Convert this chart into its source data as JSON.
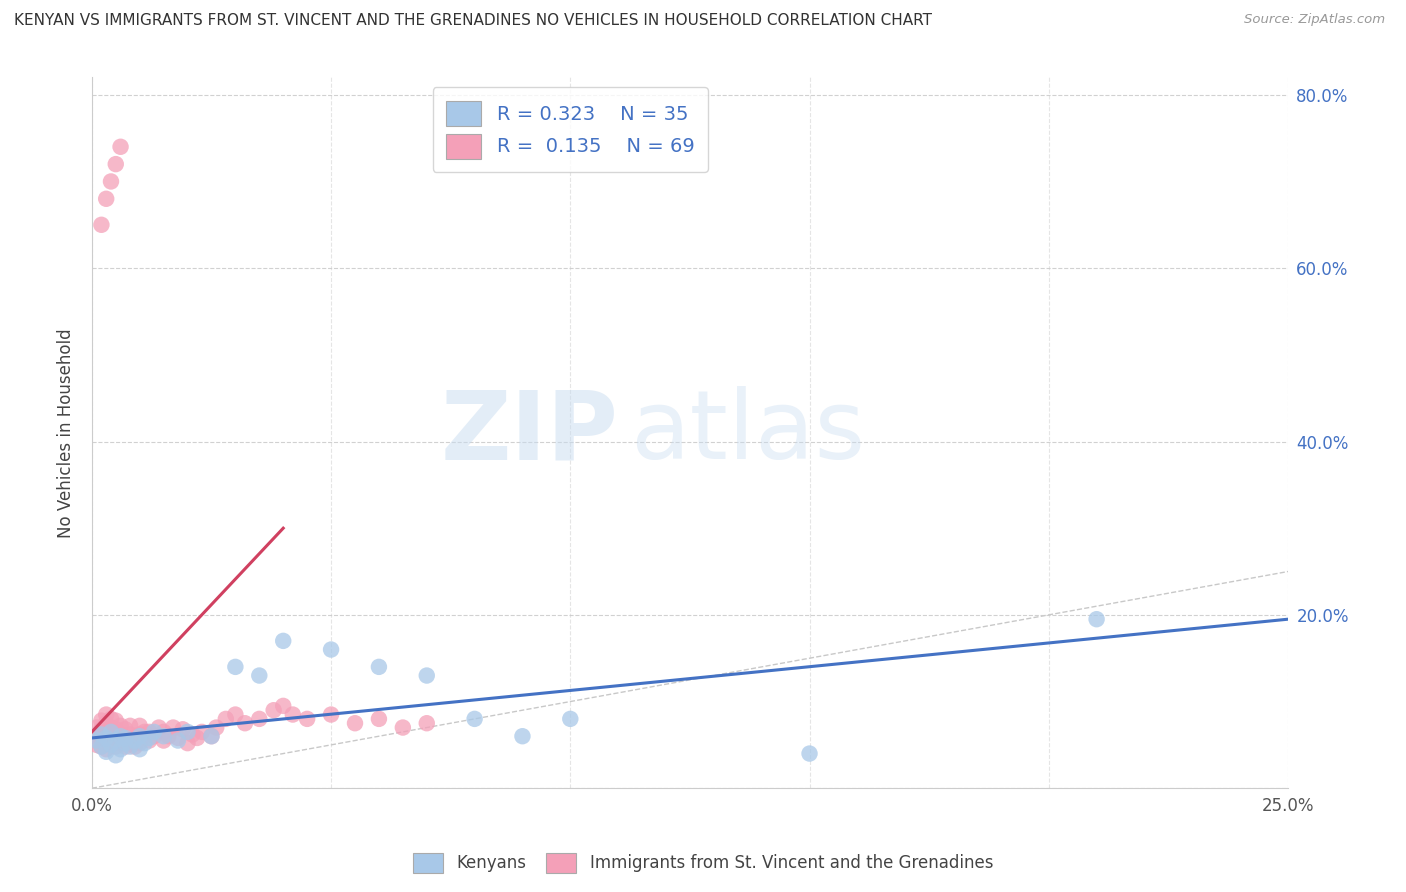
{
  "title": "KENYAN VS IMMIGRANTS FROM ST. VINCENT AND THE GRENADINES NO VEHICLES IN HOUSEHOLD CORRELATION CHART",
  "source": "Source: ZipAtlas.com",
  "ylabel": "No Vehicles in Household",
  "xlim": [
    0.0,
    0.25
  ],
  "ylim": [
    0.0,
    0.82
  ],
  "xticks": [
    0.0,
    0.05,
    0.1,
    0.15,
    0.2,
    0.25
  ],
  "yticks": [
    0.0,
    0.2,
    0.4,
    0.6,
    0.8
  ],
  "ytick_labels": [
    "",
    "20.0%",
    "40.0%",
    "60.0%",
    "80.0%"
  ],
  "xtick_labels": [
    "0.0%",
    "",
    "",
    "",
    "",
    "25.0%"
  ],
  "kenyan_R": 0.323,
  "kenyan_N": 35,
  "svg_R": 0.135,
  "svg_N": 69,
  "kenyan_color": "#a8c8e8",
  "svg_color": "#f4a0b8",
  "kenyan_line_color": "#4472c4",
  "svg_line_color": "#d04060",
  "background_color": "#ffffff",
  "grid_color": "#cccccc",
  "watermark_zip": "ZIP",
  "watermark_atlas": "atlas",
  "legend_label_kenyan": "Kenyans",
  "legend_label_svg": "Immigrants from St. Vincent and the Grenadines",
  "kenyan_x": [
    0.001,
    0.002,
    0.002,
    0.003,
    0.003,
    0.004,
    0.004,
    0.005,
    0.005,
    0.006,
    0.006,
    0.007,
    0.007,
    0.008,
    0.009,
    0.01,
    0.01,
    0.011,
    0.012,
    0.013,
    0.015,
    0.018,
    0.02,
    0.025,
    0.03,
    0.035,
    0.04,
    0.05,
    0.06,
    0.07,
    0.08,
    0.09,
    0.1,
    0.15,
    0.21
  ],
  "kenyan_y": [
    0.055,
    0.048,
    0.062,
    0.042,
    0.058,
    0.05,
    0.065,
    0.038,
    0.055,
    0.045,
    0.06,
    0.052,
    0.058,
    0.048,
    0.055,
    0.045,
    0.06,
    0.052,
    0.058,
    0.065,
    0.06,
    0.055,
    0.065,
    0.06,
    0.14,
    0.13,
    0.17,
    0.16,
    0.14,
    0.13,
    0.08,
    0.06,
    0.08,
    0.04,
    0.195
  ],
  "svg_x": [
    0.001,
    0.001,
    0.001,
    0.002,
    0.002,
    0.002,
    0.002,
    0.003,
    0.003,
    0.003,
    0.003,
    0.003,
    0.004,
    0.004,
    0.004,
    0.004,
    0.005,
    0.005,
    0.005,
    0.005,
    0.006,
    0.006,
    0.006,
    0.007,
    0.007,
    0.007,
    0.008,
    0.008,
    0.008,
    0.009,
    0.009,
    0.01,
    0.01,
    0.01,
    0.011,
    0.012,
    0.012,
    0.013,
    0.014,
    0.015,
    0.015,
    0.016,
    0.017,
    0.018,
    0.019,
    0.02,
    0.021,
    0.022,
    0.023,
    0.025,
    0.026,
    0.028,
    0.03,
    0.032,
    0.035,
    0.038,
    0.04,
    0.042,
    0.045,
    0.05,
    0.055,
    0.06,
    0.065,
    0.07,
    0.002,
    0.003,
    0.004,
    0.005,
    0.006
  ],
  "svg_y": [
    0.05,
    0.06,
    0.07,
    0.048,
    0.058,
    0.068,
    0.078,
    0.045,
    0.055,
    0.065,
    0.075,
    0.085,
    0.05,
    0.06,
    0.07,
    0.08,
    0.048,
    0.058,
    0.068,
    0.078,
    0.052,
    0.062,
    0.072,
    0.048,
    0.058,
    0.068,
    0.052,
    0.062,
    0.072,
    0.048,
    0.058,
    0.052,
    0.062,
    0.072,
    0.065,
    0.055,
    0.065,
    0.06,
    0.07,
    0.055,
    0.065,
    0.06,
    0.07,
    0.058,
    0.068,
    0.052,
    0.062,
    0.058,
    0.065,
    0.06,
    0.07,
    0.08,
    0.085,
    0.075,
    0.08,
    0.09,
    0.095,
    0.085,
    0.08,
    0.085,
    0.075,
    0.08,
    0.07,
    0.075,
    0.65,
    0.68,
    0.7,
    0.72,
    0.74
  ],
  "svg_trend_x": [
    0.0,
    0.04
  ],
  "svg_trend_y": [
    0.065,
    0.3
  ],
  "kenyan_trend_x": [
    0.0,
    0.25
  ],
  "kenyan_trend_y": [
    0.058,
    0.195
  ]
}
